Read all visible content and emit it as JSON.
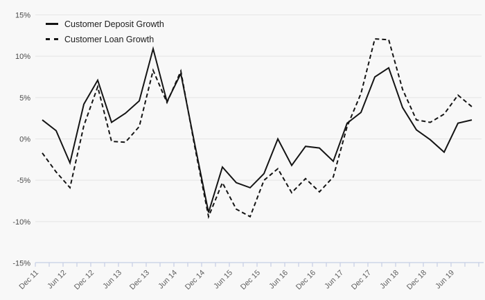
{
  "chart_data": {
    "type": "line",
    "title": "",
    "categories": [
      "Dec 11",
      "Mar 12",
      "Jun 12",
      "Sep 12",
      "Dec 12",
      "Mar 13",
      "Jun 13",
      "Sep 13",
      "Dec 13",
      "Mar 14",
      "Jun 14",
      "Sep 14",
      "Dec 14",
      "Mar 15",
      "Jun 15",
      "Sep 15",
      "Dec 15",
      "Mar 16",
      "Jun 16",
      "Sep 16",
      "Dec 16",
      "Mar 17",
      "Jun 17",
      "Sep 17",
      "Dec 17",
      "Mar 18",
      "Jun 18",
      "Sep 18",
      "Dec 18",
      "Mar 19",
      "Jun 19",
      "Sep 19"
    ],
    "x_label_step": 2,
    "x_tick_labels_visible": [
      "Dec 11",
      "Jun 12",
      "Dec 12",
      "Jun 13",
      "Dec 13",
      "Jun 14",
      "Dec 14",
      "Jun 15",
      "Dec 15",
      "Jun 16",
      "Dec 16",
      "Jun 17",
      "Dec 17",
      "Jun 18",
      "Dec 18",
      "Jun 19"
    ],
    "series": [
      {
        "name": "Customer Deposit Growth",
        "line_style": "solid",
        "color": "#141414",
        "values": [
          2.3,
          1.0,
          -2.9,
          4.2,
          7.1,
          2.0,
          3.1,
          4.6,
          10.9,
          4.5,
          7.9,
          -0.6,
          -8.9,
          -3.4,
          -5.3,
          -5.9,
          -4.2,
          0.0,
          -3.2,
          -0.9,
          -1.1,
          -2.7,
          1.9,
          3.2,
          7.5,
          8.6,
          3.8,
          1.1,
          -0.1,
          -1.6,
          1.9,
          2.3
        ]
      },
      {
        "name": "Customer Loan Growth",
        "line_style": "dashed",
        "color": "#141414",
        "values": [
          -1.7,
          -4.0,
          -5.9,
          1.6,
          6.3,
          -0.3,
          -0.4,
          1.5,
          8.3,
          4.4,
          8.2,
          -0.9,
          -9.4,
          -5.3,
          -8.5,
          -9.4,
          -5.0,
          -3.6,
          -6.5,
          -4.8,
          -6.4,
          -4.6,
          1.5,
          5.5,
          12.1,
          12.0,
          6.0,
          2.3,
          2.0,
          3.0,
          5.3,
          3.9
        ]
      }
    ],
    "ylim": [
      -15,
      15
    ],
    "y_ticks": [
      15,
      10,
      5,
      0,
      -5,
      -10,
      -15
    ],
    "y_tick_suffix": "%",
    "grid": "horizontal",
    "legend_position": "top-left",
    "colors": {
      "background": "#f8f8f8",
      "gridline": "#e5e5e5",
      "axis": "#c5cee4",
      "y_tick_label": "#4a4a4a",
      "x_tick_label": "#5f5f5f",
      "legend_text": "#1b1b1b",
      "line": "#141414"
    }
  }
}
